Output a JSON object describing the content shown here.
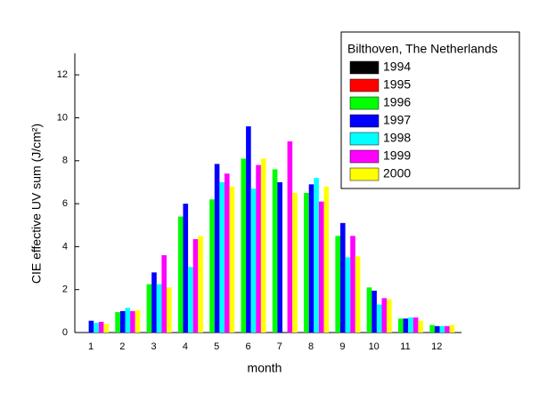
{
  "chart_data": {
    "type": "bar",
    "x_label": "month",
    "y_label": "CIE effective UV sum (J/cm²)",
    "legend_title": "Bilthoven, The Netherlands",
    "legend_position": "upper right",
    "categories": [
      "1",
      "2",
      "3",
      "4",
      "5",
      "6",
      "7",
      "8",
      "9",
      "10",
      "11",
      "12"
    ],
    "series": [
      {
        "name": "1994",
        "color": "#000000",
        "values": [
          null,
          null,
          null,
          null,
          null,
          null,
          null,
          null,
          null,
          null,
          null,
          null
        ]
      },
      {
        "name": "1995",
        "color": "#ff0000",
        "values": [
          null,
          null,
          null,
          null,
          null,
          null,
          null,
          null,
          null,
          null,
          null,
          null
        ]
      },
      {
        "name": "1996",
        "color": "#00ff00",
        "values": [
          null,
          0.95,
          2.25,
          5.4,
          6.2,
          8.1,
          7.6,
          6.5,
          4.5,
          2.1,
          0.65,
          0.35
        ]
      },
      {
        "name": "1997",
        "color": "#0000ff",
        "values": [
          0.55,
          1.0,
          2.8,
          6.0,
          7.85,
          9.6,
          7.0,
          6.9,
          5.1,
          1.95,
          0.65,
          0.3
        ]
      },
      {
        "name": "1998",
        "color": "#00ffff",
        "values": [
          0.45,
          1.15,
          2.25,
          3.05,
          7.0,
          6.7,
          null,
          7.2,
          3.5,
          1.3,
          0.7,
          0.3
        ]
      },
      {
        "name": "1999",
        "color": "#ff00ff",
        "values": [
          0.5,
          1.0,
          3.6,
          4.35,
          7.4,
          7.8,
          8.9,
          6.1,
          4.5,
          1.6,
          0.7,
          0.3
        ]
      },
      {
        "name": "2000",
        "color": "#ffff00",
        "values": [
          0.4,
          1.05,
          2.1,
          4.5,
          6.8,
          8.1,
          6.5,
          6.8,
          3.55,
          1.55,
          0.55,
          0.35
        ]
      }
    ],
    "ylim": [
      0,
      13
    ],
    "yticks": [
      0,
      2,
      4,
      6,
      8,
      10,
      12
    ]
  }
}
